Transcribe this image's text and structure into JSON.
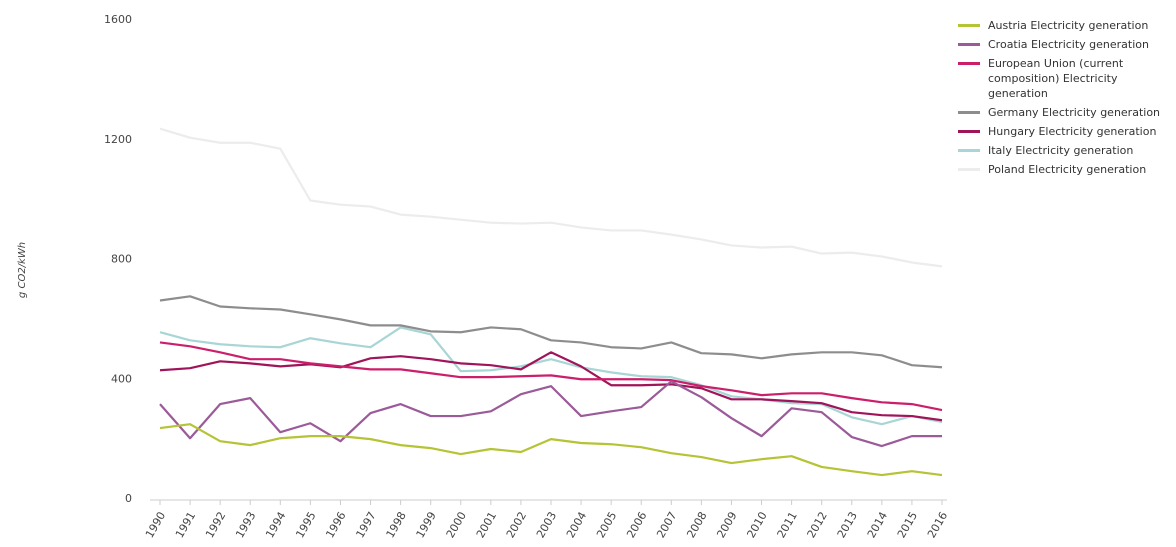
{
  "chart_data": {
    "type": "line",
    "y_label": "g CO2/kWh",
    "categories": [
      "1990",
      "1991",
      "1992",
      "1993",
      "1994",
      "1995",
      "1996",
      "1997",
      "1998",
      "1999",
      "2000",
      "2001",
      "2002",
      "2003",
      "2004",
      "2005",
      "2006",
      "2007",
      "2008",
      "2009",
      "2010",
      "2011",
      "2012",
      "2013",
      "2014",
      "2015",
      "2016"
    ],
    "ylim": [
      0,
      1600
    ],
    "yticks": [
      0,
      400,
      800,
      1200,
      1600
    ],
    "series": [
      {
        "name": "Austria Electricity generation",
        "color": "#b5c334",
        "values": [
          237,
          250,
          193,
          180,
          203,
          210,
          210,
          200,
          180,
          170,
          150,
          167,
          157,
          200,
          187,
          183,
          173,
          153,
          140,
          120,
          133,
          143,
          107,
          93,
          80,
          93,
          80
        ]
      },
      {
        "name": "Croatia Electricity generation",
        "color": "#9b5a98",
        "values": [
          317,
          203,
          317,
          337,
          223,
          253,
          193,
          287,
          317,
          277,
          277,
          293,
          350,
          377,
          277,
          293,
          307,
          393,
          340,
          270,
          210,
          303,
          290,
          207,
          177,
          210,
          210
        ]
      },
      {
        "name": "European Union (current composition) Electricity generation",
        "color": "#cc1f6b",
        "values": [
          523,
          510,
          490,
          467,
          467,
          453,
          443,
          433,
          433,
          420,
          407,
          407,
          410,
          413,
          400,
          400,
          400,
          397,
          377,
          363,
          347,
          353,
          353,
          337,
          323,
          317,
          297
        ]
      },
      {
        "name": "Germany Electricity generation",
        "color": "#8d8d8d",
        "values": [
          663,
          677,
          643,
          637,
          633,
          617,
          600,
          580,
          580,
          560,
          557,
          573,
          567,
          530,
          523,
          507,
          503,
          523,
          487,
          483,
          470,
          483,
          490,
          490,
          480,
          447,
          440
        ]
      },
      {
        "name": "Hungary Electricity generation",
        "color": "#a0145a",
        "values": [
          430,
          437,
          460,
          453,
          443,
          450,
          440,
          470,
          477,
          467,
          453,
          447,
          433,
          490,
          443,
          380,
          380,
          383,
          370,
          333,
          333,
          327,
          320,
          290,
          280,
          277,
          263
        ]
      },
      {
        "name": "Italy Electricity generation",
        "color": "#a8d5d5",
        "values": [
          557,
          530,
          517,
          510,
          507,
          537,
          520,
          507,
          573,
          550,
          427,
          430,
          443,
          467,
          440,
          423,
          410,
          407,
          380,
          343,
          333,
          320,
          317,
          273,
          250,
          277,
          257
        ]
      },
      {
        "name": "Poland Electricity generation",
        "color": "#ececec",
        "values": [
          1237,
          1207,
          1190,
          1190,
          1170,
          997,
          983,
          977,
          950,
          943,
          933,
          923,
          920,
          923,
          907,
          897,
          897,
          883,
          867,
          847,
          840,
          843,
          820,
          823,
          810,
          790,
          777
        ]
      }
    ]
  }
}
